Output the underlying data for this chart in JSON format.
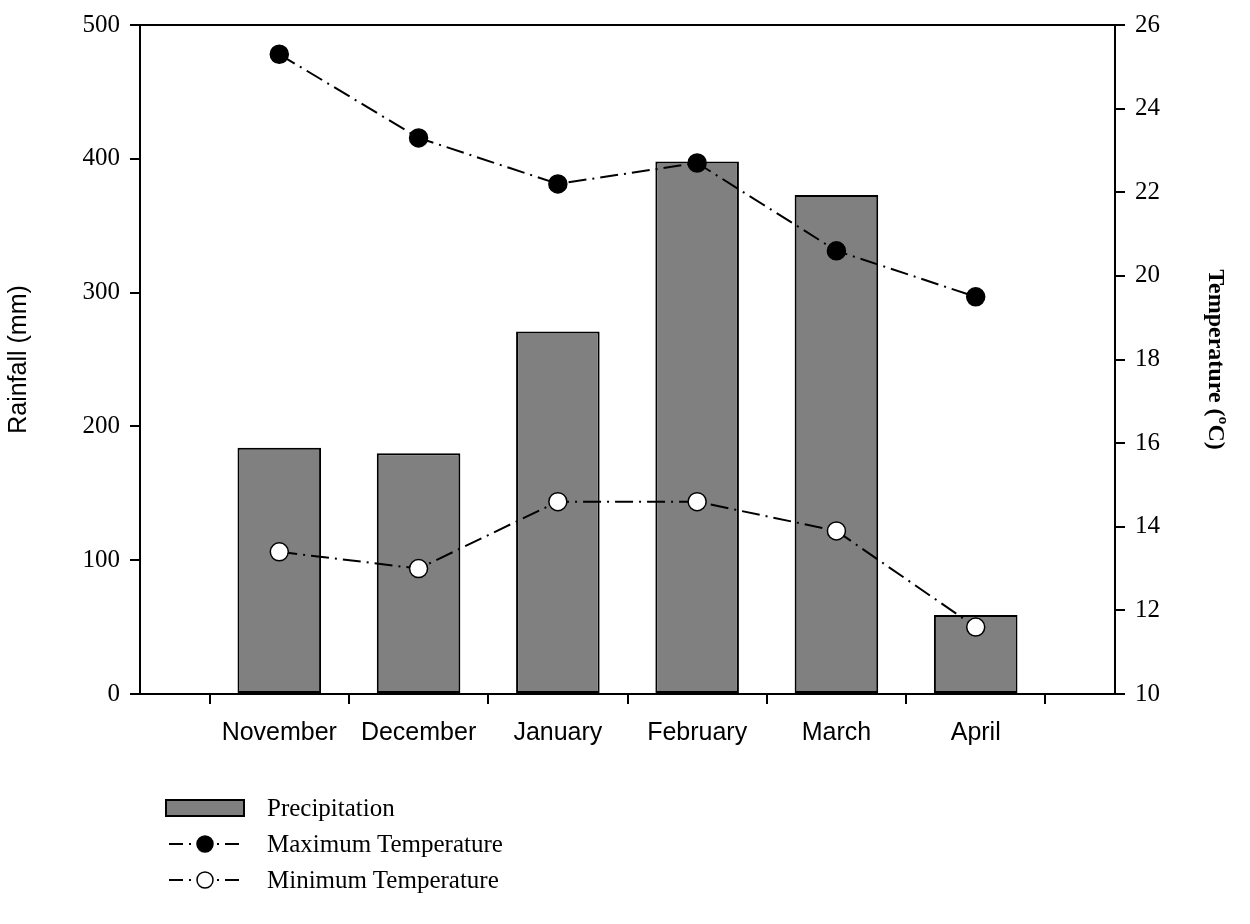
{
  "chart_data": {
    "type": "bar",
    "categories": [
      null,
      "November",
      "December",
      "January",
      "February",
      "March",
      "April",
      null
    ],
    "ylabel": "Rainfall (mm)",
    "y2label": "Temperature (ºC)",
    "ylim": [
      0,
      500
    ],
    "yticks": [
      0,
      100,
      200,
      300,
      400,
      500
    ],
    "y2lim": [
      10,
      26
    ],
    "y2ticks": [
      10,
      12,
      14,
      16,
      18,
      20,
      22,
      24,
      26
    ],
    "grid": false,
    "legend": "bottom left",
    "marker": "circle",
    "line_style": "dashed",
    "series": [
      {
        "name": "Precipitation",
        "color": "#808080",
        "values": [
          null,
          184,
          180,
          271,
          398,
          373,
          59,
          null
        ]
      },
      {
        "name": "Maximum Temperature",
        "type": "line",
        "axis": "y2",
        "color": "#000000",
        "values": [
          null,
          25.3,
          23.3,
          22.2,
          22.7,
          20.6,
          19.5,
          null
        ]
      },
      {
        "name": "Minimum Temperature",
        "type": "line",
        "axis": "y2",
        "color": "#ffffff",
        "values": [
          null,
          13.4,
          13.0,
          14.6,
          14.6,
          13.9,
          11.6,
          null
        ]
      }
    ]
  }
}
